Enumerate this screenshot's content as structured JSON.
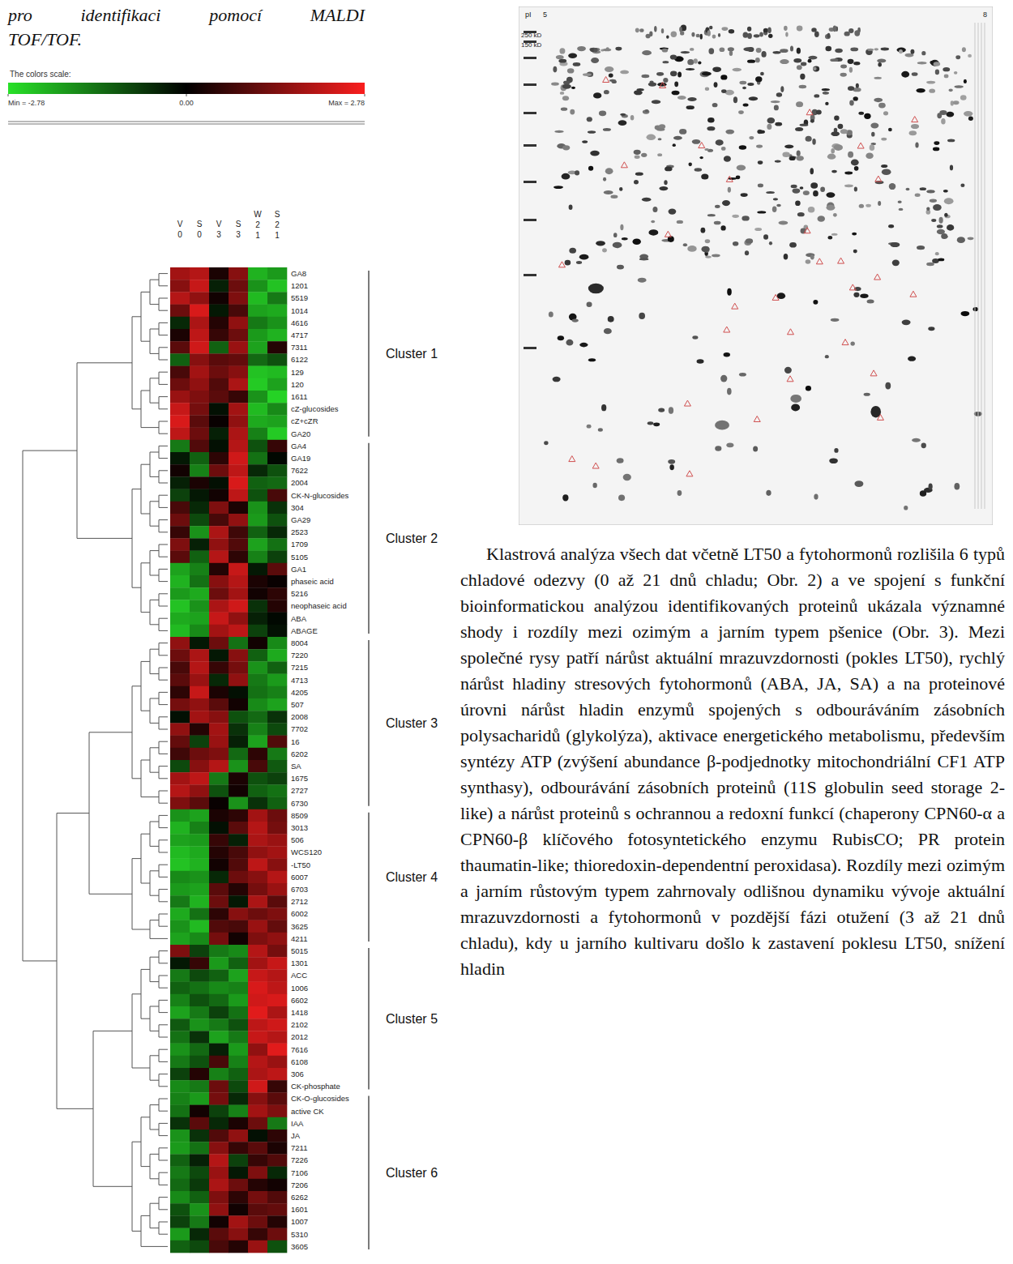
{
  "caption": [
    "pro identifikaci pomocí MALDI",
    "TOF/TOF."
  ],
  "chart_data": {
    "type": "heatmap",
    "columns": [
      "V0",
      "S0",
      "V3",
      "S3",
      "W21",
      "S21"
    ],
    "colorbar": {
      "title": "The colors scale:",
      "range": [
        -2.78,
        2.78
      ],
      "ticks": [
        {
          "value": -2.78,
          "label": "Min = -2.78"
        },
        {
          "value": 0,
          "label": "0.00"
        },
        {
          "value": 2.78,
          "label": "Max = 2.78"
        }
      ]
    },
    "clusters": [
      {
        "label": "Cluster 1",
        "rows": [
          "GA8",
          "1201",
          "5519",
          "1014",
          "4616",
          "4717",
          "7311",
          "6122",
          "129",
          "120",
          "1611",
          "cZ-glucosides",
          "cZ+cZR",
          "GA20"
        ],
        "cells": [
          [
            1.8,
            2.0,
            0.3,
            1.5,
            -2.2,
            -1.9
          ],
          [
            1.5,
            2.2,
            -0.4,
            1.2,
            -1.8,
            -2.4
          ],
          [
            2.0,
            1.6,
            0.2,
            1.4,
            -2.3,
            -1.5
          ],
          [
            1.2,
            2.4,
            -0.3,
            0.8,
            -2.0,
            -2.1
          ],
          [
            -0.5,
            1.9,
            0.4,
            1.6,
            -1.5,
            -1.8
          ],
          [
            0.3,
            2.1,
            0.6,
            1.2,
            -1.9,
            -2.2
          ],
          [
            1.0,
            2.3,
            -1.2,
            1.7,
            -2.0,
            0.4
          ],
          [
            -1.2,
            1.5,
            1.0,
            1.1,
            -1.3,
            -1.0
          ],
          [
            0.8,
            1.8,
            1.2,
            1.5,
            -2.4,
            -2.3
          ],
          [
            1.2,
            1.6,
            0.9,
            1.9,
            -2.5,
            -2.0
          ],
          [
            1.7,
            1.4,
            1.0,
            0.6,
            -1.8,
            -2.6
          ],
          [
            2.2,
            1.3,
            -0.2,
            1.8,
            -2.3,
            -1.7
          ],
          [
            2.4,
            1.0,
            0.1,
            1.6,
            -2.1,
            -2.0
          ],
          [
            2.1,
            1.2,
            -0.4,
            1.9,
            -1.6,
            -2.5
          ]
        ]
      },
      {
        "label": "Cluster 2",
        "rows": [
          "GA4",
          "GA19",
          "7622",
          "2004",
          "CK-N-glucosides",
          "304",
          "GA29",
          "2523",
          "1709",
          "5105",
          "GA1",
          "phaseic acid",
          "5216",
          "neophaseic acid",
          "ABA",
          "ABAGE"
        ],
        "cells": [
          [
            -1.5,
            0.9,
            -0.2,
            2.0,
            -1.0,
            0.6
          ],
          [
            -0.3,
            -1.2,
            0.5,
            2.3,
            -1.4,
            -0.1
          ],
          [
            0.2,
            -1.6,
            1.2,
            2.1,
            -0.5,
            -1.0
          ],
          [
            -0.4,
            0.3,
            -0.2,
            2.4,
            -1.2,
            -1.3
          ],
          [
            -0.8,
            -0.3,
            0.2,
            2.1,
            -1.0,
            0.8
          ],
          [
            0.8,
            -0.5,
            1.4,
            0.3,
            -1.8,
            -0.6
          ],
          [
            1.2,
            -0.9,
            0.8,
            1.6,
            -1.9,
            -1.0
          ],
          [
            0.6,
            -1.8,
            1.9,
            0.7,
            -1.2,
            -0.5
          ],
          [
            1.4,
            -0.4,
            1.6,
            0.9,
            -2.0,
            -1.4
          ],
          [
            1.0,
            -1.2,
            2.0,
            0.5,
            -1.6,
            -0.8
          ],
          [
            -2.0,
            -1.6,
            0.4,
            2.2,
            -0.3,
            1.0
          ],
          [
            -2.2,
            -1.4,
            1.5,
            2.0,
            0.3,
            0.1
          ],
          [
            -1.9,
            -2.1,
            1.2,
            1.8,
            0.2,
            0.5
          ],
          [
            -2.4,
            -1.8,
            1.9,
            2.3,
            -0.6,
            0.4
          ],
          [
            -2.1,
            -2.0,
            2.2,
            1.6,
            -0.4,
            -0.1
          ],
          [
            -2.3,
            -1.7,
            1.8,
            2.1,
            -0.8,
            -0.2
          ]
        ]
      },
      {
        "label": "Cluster 3",
        "rows": [
          "8004",
          "7220",
          "7215",
          "4713",
          "4205",
          "507",
          "2008",
          "7702",
          "16",
          "6202",
          "SA",
          "1675",
          "2727",
          "6730"
        ],
        "cells": [
          [
            1.6,
            -0.3,
            1.2,
            -1.4,
            0.2,
            -1.7
          ],
          [
            1.2,
            1.9,
            -0.3,
            1.5,
            -1.2,
            -2.1
          ],
          [
            0.8,
            2.0,
            0.6,
            1.3,
            -1.8,
            -1.2
          ],
          [
            1.0,
            1.7,
            -0.5,
            1.6,
            -1.5,
            -1.9
          ],
          [
            0.5,
            2.2,
            0.3,
            -0.2,
            -1.4,
            -1.6
          ],
          [
            1.3,
            1.6,
            1.0,
            0.2,
            -1.7,
            -2.0
          ],
          [
            -0.2,
            1.8,
            1.5,
            -1.0,
            -1.3,
            -0.6
          ],
          [
            1.6,
            0.4,
            1.8,
            -0.6,
            -1.6,
            -0.9
          ],
          [
            1.1,
            -0.8,
            1.7,
            -0.4,
            -2.0,
            0.9
          ],
          [
            0.7,
            1.2,
            1.4,
            -1.3,
            0.5,
            -1.5
          ],
          [
            -0.9,
            1.5,
            2.0,
            -1.8,
            0.8,
            -1.1
          ],
          [
            1.8,
            2.1,
            -1.5,
            0.3,
            -1.0,
            -0.8
          ],
          [
            2.0,
            1.6,
            -1.0,
            0.2,
            -1.2,
            -1.4
          ],
          [
            1.4,
            1.0,
            0.1,
            -1.8,
            -0.6,
            -1.2
          ]
        ]
      },
      {
        "label": "Cluster 4",
        "rows": [
          "8509",
          "3013",
          "506",
          "WCS120",
          "-LT50",
          "6007",
          "6703",
          "2712",
          "6002",
          "3625",
          "4211"
        ],
        "cells": [
          [
            -1.8,
            -2.0,
            0.3,
            0.5,
            1.8,
            1.2
          ],
          [
            -2.2,
            -1.6,
            -0.2,
            1.0,
            2.0,
            1.3
          ],
          [
            -2.0,
            -1.9,
            0.6,
            -0.4,
            1.9,
            1.7
          ],
          [
            -2.3,
            -2.1,
            0.4,
            0.8,
            1.6,
            1.8
          ],
          [
            -2.4,
            -2.2,
            0.2,
            0.9,
            2.1,
            1.5
          ],
          [
            -1.7,
            -1.8,
            -0.5,
            1.2,
            1.5,
            2.0
          ],
          [
            -1.9,
            -2.0,
            1.0,
            0.4,
            1.3,
            1.7
          ],
          [
            -1.5,
            -2.2,
            1.2,
            -0.3,
            1.9,
            1.0
          ],
          [
            -2.1,
            -1.4,
            0.5,
            1.5,
            1.2,
            1.4
          ],
          [
            -1.8,
            -2.3,
            0.9,
            0.8,
            1.7,
            1.1
          ],
          [
            -2.0,
            -1.7,
            1.3,
            0.2,
            1.4,
            1.6
          ]
        ]
      },
      {
        "label": "Cluster 5",
        "rows": [
          "5015",
          "1301",
          "ACC",
          "1006",
          "6602",
          "1418",
          "2102",
          "2012",
          "7616",
          "6108",
          "306",
          "CK-phosphate"
        ],
        "cells": [
          [
            1.4,
            -0.8,
            -1.5,
            -1.7,
            2.0,
            1.3
          ],
          [
            -0.3,
            0.6,
            -1.9,
            -1.2,
            1.8,
            2.2
          ],
          [
            -1.5,
            -0.9,
            -1.2,
            -2.0,
            2.2,
            2.0
          ],
          [
            -1.2,
            -1.4,
            -1.7,
            -1.6,
            2.4,
            2.1
          ],
          [
            -1.6,
            -1.0,
            -1.3,
            -1.9,
            2.3,
            2.4
          ],
          [
            -2.0,
            -1.5,
            -0.8,
            -1.4,
            2.5,
            1.9
          ],
          [
            -1.1,
            -1.8,
            -1.5,
            -1.0,
            2.1,
            2.3
          ],
          [
            -1.4,
            -0.6,
            -2.0,
            -1.5,
            2.2,
            2.0
          ],
          [
            -1.8,
            -1.3,
            -0.4,
            -1.9,
            1.6,
            2.5
          ],
          [
            -1.5,
            -1.0,
            0.8,
            -1.6,
            2.0,
            1.7
          ],
          [
            -0.8,
            0.4,
            -1.6,
            -1.2,
            1.9,
            2.1
          ],
          [
            -1.7,
            -1.5,
            1.2,
            -0.9,
            2.3,
            0.6
          ]
        ]
      },
      {
        "label": "Cluster 6",
        "rows": [
          "CK-O-glucosides",
          "active CK",
          "IAA",
          "JA",
          "7211",
          "7226",
          "7106",
          "7206",
          "6262",
          "1601",
          "1007",
          "5310",
          "3605"
        ],
        "cells": [
          [
            -1.6,
            -1.9,
            1.3,
            -0.5,
            1.5,
            1.0
          ],
          [
            -1.4,
            0.2,
            -0.8,
            -1.6,
            1.8,
            1.4
          ],
          [
            -0.6,
            1.0,
            -0.5,
            0.3,
            1.2,
            -1.5
          ],
          [
            -1.8,
            -0.6,
            0.9,
            1.6,
            -0.2,
            0.5
          ],
          [
            -1.9,
            -1.4,
            1.5,
            0.6,
            1.0,
            0.3
          ],
          [
            -1.2,
            -0.4,
            2.0,
            -0.8,
            0.6,
            0.9
          ],
          [
            -1.5,
            -0.9,
            1.7,
            -0.3,
            1.4,
            -0.5
          ],
          [
            -1.3,
            -0.7,
            1.9,
            1.2,
            0.4,
            0.2
          ],
          [
            -1.7,
            -1.2,
            1.4,
            0.5,
            1.3,
            0.9
          ],
          [
            -1.0,
            -1.8,
            1.6,
            0.2,
            1.0,
            1.1
          ],
          [
            -0.8,
            -1.5,
            0.2,
            1.8,
            1.2,
            0.4
          ],
          [
            -1.9,
            -0.5,
            1.0,
            1.5,
            0.6,
            1.2
          ],
          [
            -1.2,
            -0.9,
            0.8,
            0.4,
            1.7,
            -1.0
          ]
        ]
      }
    ]
  },
  "gel": {
    "pi_labels": [
      "pI",
      "5",
      "8"
    ],
    "mass_labels": [
      "250 kD",
      "150 kD"
    ]
  },
  "paragraph": "Klastrová analýza všech dat včetně LT50 a fytohormonů rozlišila 6 typů chladové odezvy (0 až 21 dnů chladu; Obr. 2) a ve spojení s funkční bioinformatickou analýzou identifikovaných proteinů ukázala významné shody i rozdíly mezi ozimým a jarním typem pšenice (Obr. 3). Mezi společné rysy patří nárůst aktuální mrazuvzdornosti (pokles LT50), rychlý nárůst hladiny stresových fytohormonů (ABA, JA, SA) a na proteinové úrovni nárůst hladin enzymů spojených s odbouráváním zásobních polysacharidů (glykolýza), aktivace energetického metabolismu, především syntézy ATP (zvýšení abundance β-podjednotky mitochondriální CF1 ATP synthasy), odbourávání zásobních proteinů (11S globulin seed storage 2-like) a nárůst proteinů s ochrannou a redoxní funkcí (chaperony CPN60-α a CPN60-β klíčového fotosyntetického enzymu RubisCO; PR protein thaumatin-like; thioredoxin-dependentní peroxidasa). Rozdíly mezi ozimým a jarním růstovým typem zahrnovaly odlišnou dynamiku vývoje aktuální mrazuvzdornosti a fytohormonů v pozdější fázi otužení (3 až 21 dnů chladu), kdy u jarního kultivaru došlo k zastavení poklesu LT50, snížení hladin"
}
